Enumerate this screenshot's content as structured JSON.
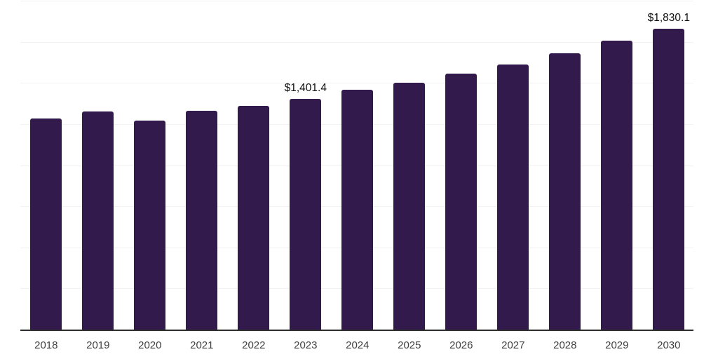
{
  "chart_data": {
    "type": "bar",
    "title": "",
    "categories": [
      "2018",
      "2019",
      "2020",
      "2021",
      "2022",
      "2023",
      "2024",
      "2025",
      "2026",
      "2027",
      "2028",
      "2029",
      "2030"
    ],
    "values": [
      1283,
      1325,
      1270,
      1332,
      1359,
      1401.4,
      1457,
      1502,
      1556,
      1613,
      1681,
      1757,
      1830.1
    ],
    "data_labels": {
      "2023": "$1,401.4",
      "2030": "$1,830.1"
    },
    "xlabel": "",
    "ylabel": "",
    "ylim": [
      0,
      2000
    ],
    "gridline_step": 250,
    "grid": "horizontal-only",
    "legend_position": "none",
    "colors": {
      "bar": "#321a4d",
      "gridline": "#f2f2f2",
      "axis_line": "#2e2e2e",
      "tick_label": "#404040",
      "data_label": "#0d0d0d",
      "background": "#ffffff"
    }
  }
}
